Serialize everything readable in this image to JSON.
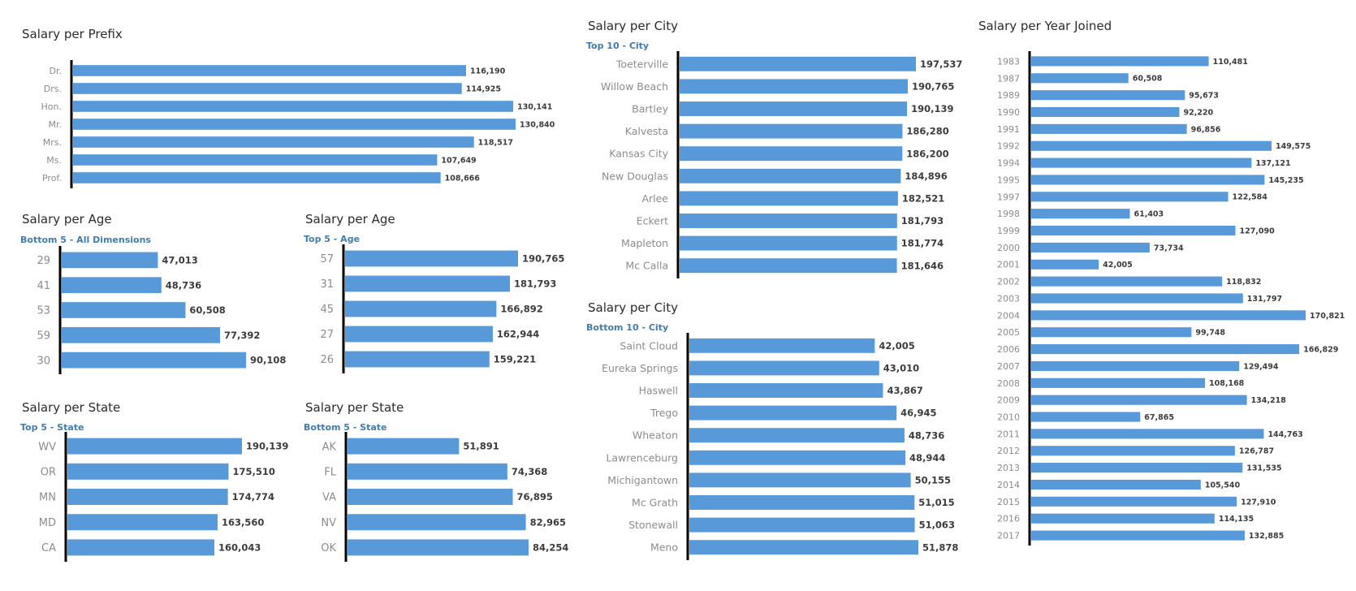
{
  "colors": {
    "bar": "#5899da",
    "title": "#2b2b2b",
    "subtitle": "#427cac",
    "category": "#8c8c8c",
    "value": "#3c3c3c",
    "axis": "#000000"
  },
  "charts": {
    "prefix": {
      "title": "Salary per Prefix",
      "subtitle": ""
    },
    "age_bottom": {
      "title": "Salary per Age",
      "subtitle": "Bottom 5 - All Dimensions"
    },
    "age_top": {
      "title": "Salary per Age",
      "subtitle": "Top 5 - Age"
    },
    "state_top": {
      "title": "Salary per State",
      "subtitle": "Top 5 - State"
    },
    "state_bottom": {
      "title": "Salary per State",
      "subtitle": "Bottom 5 - State"
    },
    "city_top": {
      "title": "Salary per City",
      "subtitle": "Top 10 - City"
    },
    "city_bottom": {
      "title": "Salary per City",
      "subtitle": "Bottom 10 - City"
    },
    "year": {
      "title": "Salary per Year Joined",
      "subtitle": ""
    }
  },
  "chart_data": [
    {
      "id": "prefix",
      "type": "bar",
      "orientation": "horizontal",
      "title": "Salary per Prefix",
      "categories": [
        "Dr.",
        "Drs.",
        "Hon.",
        "Mr.",
        "Mrs.",
        "Ms.",
        "Prof."
      ],
      "values": [
        116190,
        114925,
        130141,
        130840,
        118517,
        107649,
        108666
      ],
      "value_labels": [
        "116,190",
        "114,925",
        "130,141",
        "130,840",
        "118,517",
        "107,649",
        "108,666"
      ],
      "xlim": [
        0,
        130840
      ]
    },
    {
      "id": "age_bottom",
      "type": "bar",
      "orientation": "horizontal",
      "title": "Salary per Age",
      "subtitle": "Bottom 5 - All Dimensions",
      "categories": [
        "29",
        "41",
        "53",
        "59",
        "30"
      ],
      "values": [
        47013,
        48736,
        60508,
        77392,
        90108
      ],
      "value_labels": [
        "47,013",
        "48,736",
        "60,508",
        "77,392",
        "90,108"
      ],
      "xlim": [
        0,
        90108
      ]
    },
    {
      "id": "age_top",
      "type": "bar",
      "orientation": "horizontal",
      "title": "Salary per Age",
      "subtitle": "Top 5 - Age",
      "categories": [
        "57",
        "31",
        "45",
        "27",
        "26"
      ],
      "values": [
        190765,
        181793,
        166892,
        162944,
        159221
      ],
      "value_labels": [
        "190,765",
        "181,793",
        "166,892",
        "162,944",
        "159,221"
      ],
      "xlim": [
        0,
        190765
      ]
    },
    {
      "id": "state_top",
      "type": "bar",
      "orientation": "horizontal",
      "title": "Salary per State",
      "subtitle": "Top 5 - State",
      "categories": [
        "WV",
        "OR",
        "MN",
        "MD",
        "CA"
      ],
      "values": [
        190139,
        175510,
        174774,
        163560,
        160043
      ],
      "value_labels": [
        "190,139",
        "175,510",
        "174,774",
        "163,560",
        "160,043"
      ],
      "xlim": [
        0,
        190139
      ]
    },
    {
      "id": "state_bottom",
      "type": "bar",
      "orientation": "horizontal",
      "title": "Salary per State",
      "subtitle": "Bottom 5 - State",
      "categories": [
        "AK",
        "FL",
        "VA",
        "NV",
        "OK"
      ],
      "values": [
        51891,
        74368,
        76895,
        82965,
        84254
      ],
      "value_labels": [
        "51,891",
        "74,368",
        "76,895",
        "82,965",
        "84,254"
      ],
      "xlim": [
        0,
        84254
      ]
    },
    {
      "id": "city_top",
      "type": "bar",
      "orientation": "horizontal",
      "title": "Salary per City",
      "subtitle": "Top 10 - City",
      "categories": [
        "Toeterville",
        "Willow Beach",
        "Bartley",
        "Kalvesta",
        "Kansas City",
        "New Douglas",
        "Arlee",
        "Eckert",
        "Mapleton",
        "Mc Calla"
      ],
      "values": [
        197537,
        190765,
        190139,
        186280,
        186200,
        184896,
        182521,
        181793,
        181774,
        181646
      ],
      "value_labels": [
        "197,537",
        "190,765",
        "190,139",
        "186,280",
        "186,200",
        "184,896",
        "182,521",
        "181,793",
        "181,774",
        "181,646"
      ],
      "xlim": [
        0,
        197537
      ]
    },
    {
      "id": "city_bottom",
      "type": "bar",
      "orientation": "horizontal",
      "title": "Salary per City",
      "subtitle": "Bottom 10 - City",
      "categories": [
        "Saint Cloud",
        "Eureka Springs",
        "Haswell",
        "Trego",
        "Wheaton",
        "Lawrenceburg",
        "Michigantown",
        "Mc Grath",
        "Stonewall",
        "Meno"
      ],
      "values": [
        42005,
        43010,
        43867,
        46945,
        48736,
        48944,
        50155,
        51015,
        51063,
        51878
      ],
      "value_labels": [
        "42,005",
        "43,010",
        "43,867",
        "46,945",
        "48,736",
        "48,944",
        "50,155",
        "51,015",
        "51,063",
        "51,878"
      ],
      "xlim": [
        0,
        51878
      ]
    },
    {
      "id": "year",
      "type": "bar",
      "orientation": "horizontal",
      "title": "Salary per Year Joined",
      "categories": [
        "1983",
        "1987",
        "1989",
        "1990",
        "1991",
        "1992",
        "1994",
        "1995",
        "1997",
        "1998",
        "1999",
        "2000",
        "2001",
        "2002",
        "2003",
        "2004",
        "2005",
        "2006",
        "2007",
        "2008",
        "2009",
        "2010",
        "2011",
        "2012",
        "2013",
        "2014",
        "2015",
        "2016",
        "2017"
      ],
      "values": [
        110481,
        60508,
        95673,
        92220,
        96856,
        149575,
        137121,
        145235,
        122584,
        61403,
        127090,
        73734,
        42005,
        118832,
        131797,
        170821,
        99748,
        166829,
        129494,
        108168,
        134218,
        67865,
        144763,
        126787,
        131535,
        105540,
        127910,
        114135,
        132885
      ],
      "value_labels": [
        "110,481",
        "60,508",
        "95,673",
        "92,220",
        "96,856",
        "149,575",
        "137,121",
        "145,235",
        "122,584",
        "61,403",
        "127,090",
        "73,734",
        "42,005",
        "118,832",
        "131,797",
        "170,821",
        "99,748",
        "166,829",
        "129,494",
        "108,168",
        "134,218",
        "67,865",
        "144,763",
        "126,787",
        "131,535",
        "105,540",
        "127,910",
        "114,135",
        "132,885"
      ],
      "xlim": [
        0,
        170821
      ]
    }
  ]
}
